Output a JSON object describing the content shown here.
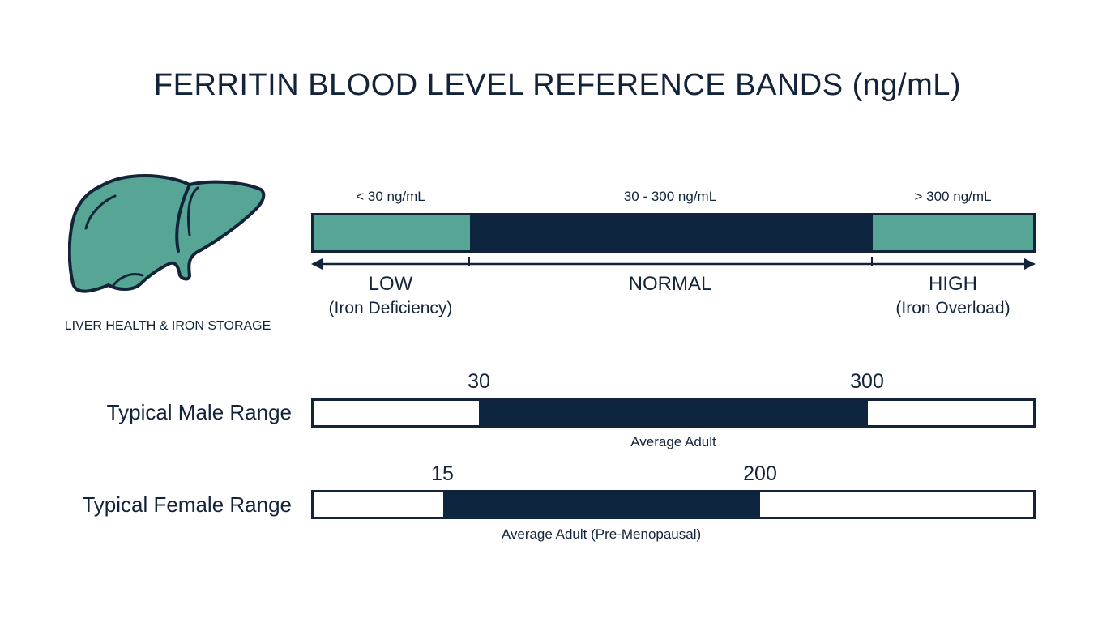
{
  "title": "FERRITIN BLOOD LEVEL REFERENCE BANDS (ng/mL)",
  "icon": {
    "name": "liver-icon",
    "caption": "LIVER HEALTH & IRON STORAGE",
    "color": "#56a595",
    "outline": "#13243a"
  },
  "colors": {
    "accent": "#56a595",
    "dark": "#0e2540",
    "text": "#13243a"
  },
  "bands": [
    {
      "range_label": "< 30 ng/mL",
      "category": "LOW",
      "description": "(Iron Deficiency)",
      "color": "#56a595",
      "share": 0.217
    },
    {
      "range_label": "30 - 300 ng/mL",
      "category": "NORMAL",
      "description": "",
      "color": "#0e2540",
      "share": 0.56
    },
    {
      "range_label": "> 300 ng/mL",
      "category": "HIGH",
      "description": "(Iron Overload)",
      "color": "#56a595",
      "share": 0.223
    }
  ],
  "ranges": [
    {
      "label": "Typical Male Range",
      "low": "30",
      "high": "300",
      "note": "Average Adult",
      "fill_start": 0.23,
      "fill_end": 0.77
    },
    {
      "label": "Typical Female Range",
      "low": "15",
      "high": "200",
      "note": "Average Adult (Pre-Menopausal)",
      "fill_start": 0.18,
      "fill_end": 0.62
    }
  ]
}
